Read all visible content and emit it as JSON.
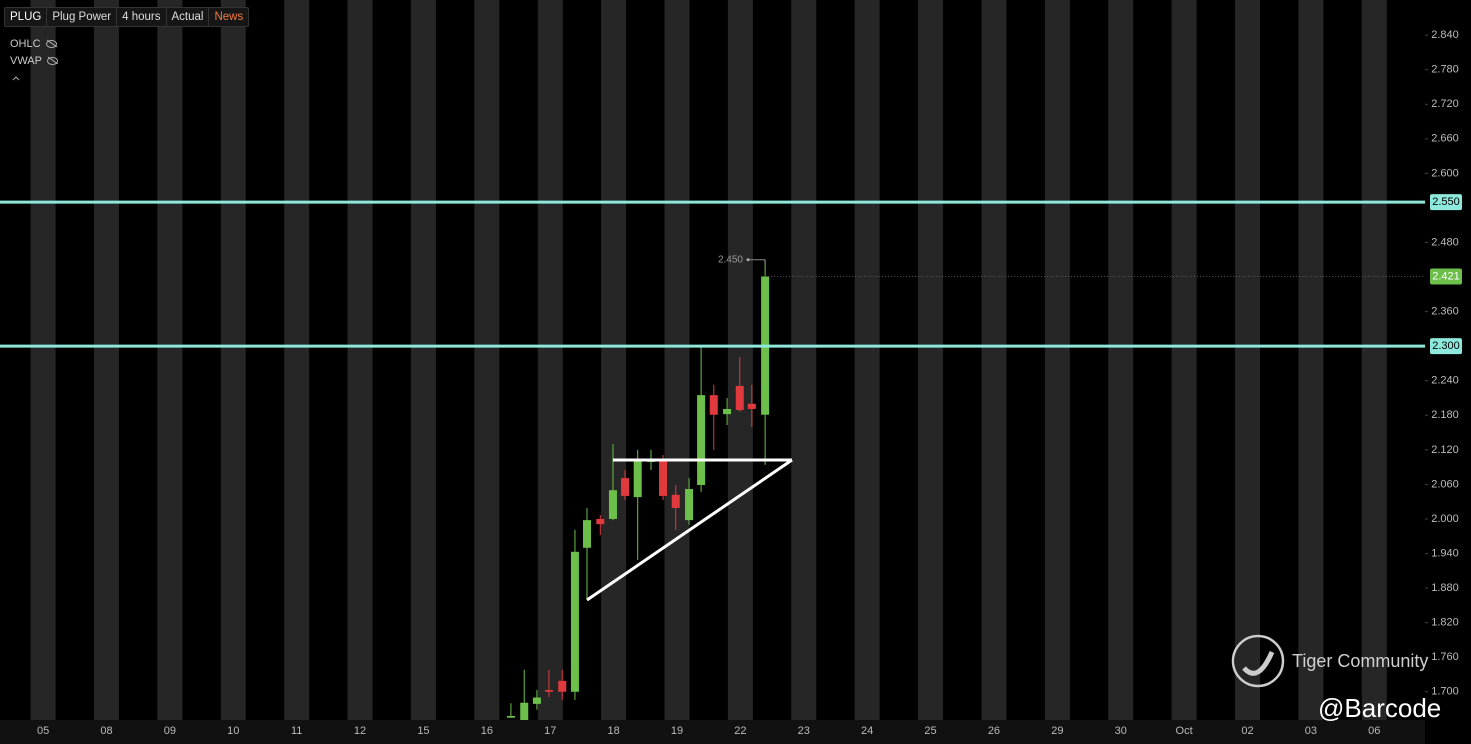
{
  "header": {
    "symbol": "PLUG",
    "name": "Plug Power",
    "interval": "4 hours",
    "mode": "Actual",
    "news": "News"
  },
  "legend": {
    "items": [
      "OHLC",
      "VWAP"
    ]
  },
  "watermark": {
    "brand": "Tiger Community",
    "handle": "@Barcode"
  },
  "chart_data": {
    "type": "candlestick",
    "x": [
      7.38,
      7.59,
      7.79,
      7.98,
      8.19,
      8.39,
      8.58,
      8.79,
      8.99,
      9.18,
      9.38,
      9.59,
      9.78,
      9.98,
      10.19,
      10.38,
      10.58,
      10.79,
      10.99,
      11.18,
      11.39
    ],
    "open": [
      1.655,
      1.651,
      1.679,
      1.703,
      1.719,
      1.7,
      1.95,
      2.0,
      2.0,
      2.071,
      2.038,
      2.099,
      2.103,
      2.042,
      1.998,
      2.059,
      2.215,
      2.182,
      2.231,
      2.2,
      2.181
    ],
    "high": [
      1.68,
      1.738,
      1.703,
      1.738,
      1.738,
      1.981,
      2.019,
      2.007,
      2.13,
      2.085,
      2.12,
      2.12,
      2.111,
      2.059,
      2.071,
      2.299,
      2.233,
      2.21,
      2.281,
      2.233,
      2.45
    ],
    "low": [
      1.655,
      1.651,
      1.669,
      1.691,
      1.686,
      1.686,
      1.86,
      1.972,
      1.998,
      2.033,
      1.929,
      2.085,
      2.033,
      1.981,
      1.99,
      2.047,
      2.12,
      2.163,
      2.186,
      2.16,
      2.094
    ],
    "close": [
      1.658,
      1.681,
      1.69,
      1.7,
      1.7,
      1.943,
      1.998,
      1.991,
      2.05,
      2.04,
      2.103,
      2.101,
      2.04,
      2.019,
      2.052,
      2.215,
      2.181,
      2.191,
      2.189,
      2.191,
      2.421
    ],
    "up_color": "#6cc04a",
    "down_color": "#e0393e",
    "xlim": [
      -0.68,
      21.8
    ],
    "xticks": [
      {
        "value": 0,
        "label": "05"
      },
      {
        "value": 1,
        "label": "08"
      },
      {
        "value": 2,
        "label": "09"
      },
      {
        "value": 3,
        "label": "10"
      },
      {
        "value": 4,
        "label": "11"
      },
      {
        "value": 5,
        "label": "12"
      },
      {
        "value": 6,
        "label": "15"
      },
      {
        "value": 7,
        "label": "16"
      },
      {
        "value": 8,
        "label": "17"
      },
      {
        "value": 9,
        "label": "18"
      },
      {
        "value": 10,
        "label": "19"
      },
      {
        "value": 11,
        "label": "22"
      },
      {
        "value": 12,
        "label": "23"
      },
      {
        "value": 13,
        "label": "24"
      },
      {
        "value": 14,
        "label": "25"
      },
      {
        "value": 15,
        "label": "26"
      },
      {
        "value": 16,
        "label": "29"
      },
      {
        "value": 17,
        "label": "30"
      },
      {
        "value": 18,
        "label": "Oct"
      },
      {
        "value": 19,
        "label": "02"
      },
      {
        "value": 20,
        "label": "03"
      },
      {
        "value": 21,
        "label": "06"
      }
    ],
    "ylim": [
      1.651,
      2.901
    ],
    "yticks": [
      {
        "value": 2.84,
        "label": "2.840"
      },
      {
        "value": 2.78,
        "label": "2.780"
      },
      {
        "value": 2.72,
        "label": "2.720"
      },
      {
        "value": 2.66,
        "label": "2.660"
      },
      {
        "value": 2.6,
        "label": "2.600"
      },
      {
        "value": 2.48,
        "label": "2.480"
      },
      {
        "value": 2.36,
        "label": "2.360"
      },
      {
        "value": 2.24,
        "label": "2.240"
      },
      {
        "value": 2.18,
        "label": "2.180"
      },
      {
        "value": 2.12,
        "label": "2.120"
      },
      {
        "value": 2.06,
        "label": "2.060"
      },
      {
        "value": 2,
        "label": "2.000"
      },
      {
        "value": 1.94,
        "label": "1.940"
      },
      {
        "value": 1.88,
        "label": "1.880"
      },
      {
        "value": 1.82,
        "label": "1.820"
      },
      {
        "value": 1.76,
        "label": "1.760"
      },
      {
        "value": 1.7,
        "label": "1.700"
      }
    ],
    "price_lines": [
      {
        "value": 2.55,
        "label": "2.550"
      },
      {
        "value": 2.3,
        "label": "2.300"
      }
    ],
    "line_color": "#8ee8dc",
    "last_price": {
      "value": 2.421,
      "label": "2.421"
    },
    "high_marker": {
      "value": 2.45,
      "label": "2.450"
    }
  }
}
